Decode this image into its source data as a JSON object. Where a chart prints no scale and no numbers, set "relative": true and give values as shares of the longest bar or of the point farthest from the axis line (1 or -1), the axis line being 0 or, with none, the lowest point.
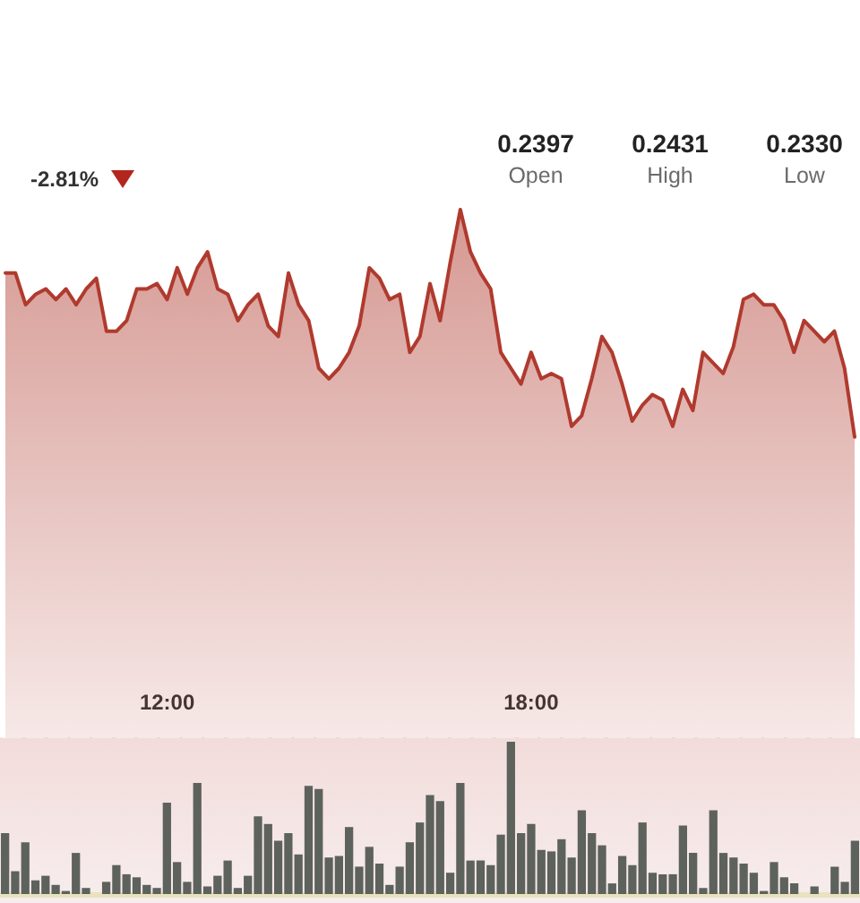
{
  "chart_data": [
    {
      "type": "area",
      "relative": true,
      "annotations": [
        "-2.81%",
        "0.2397",
        "Open",
        "0.2431",
        "High",
        "0.2330",
        "Low"
      ],
      "categories": [
        null,
        null,
        null,
        null,
        null,
        null,
        null,
        null,
        null,
        null,
        null,
        null,
        null,
        null,
        null,
        null,
        "12:00",
        null,
        null,
        null,
        null,
        null,
        null,
        null,
        null,
        null,
        null,
        null,
        null,
        null,
        null,
        null,
        null,
        null,
        null,
        null,
        null,
        null,
        null,
        null,
        null,
        null,
        null,
        null,
        null,
        null,
        null,
        null,
        null,
        null,
        null,
        null,
        "18:00",
        null,
        null,
        null,
        null,
        null,
        null,
        null,
        null,
        null,
        null,
        null,
        null,
        null,
        null,
        null,
        null,
        null,
        null,
        null,
        null,
        null,
        null,
        null,
        null,
        null,
        null,
        null,
        null,
        null,
        null,
        null,
        null
      ],
      "color": "#b03a2e",
      "values": [
        0.88,
        0.88,
        0.82,
        0.84,
        0.85,
        0.83,
        0.85,
        0.82,
        0.85,
        0.87,
        0.77,
        0.77,
        0.79,
        0.85,
        0.85,
        0.86,
        0.83,
        0.89,
        0.84,
        0.89,
        0.92,
        0.85,
        0.84,
        0.79,
        0.82,
        0.84,
        0.78,
        0.76,
        0.88,
        0.82,
        0.79,
        0.7,
        0.68,
        0.7,
        0.73,
        0.78,
        0.89,
        0.87,
        0.83,
        0.84,
        0.73,
        0.76,
        0.86,
        0.79,
        0.9,
        1,
        0.92,
        0.88,
        0.85,
        0.73,
        0.7,
        0.67,
        0.73,
        0.68,
        0.69,
        0.68,
        0.59,
        0.61,
        0.68,
        0.76,
        0.73,
        0.67,
        0.6,
        0.63,
        0.65,
        0.64,
        0.59,
        0.66,
        0.62,
        0.73,
        0.71,
        0.69,
        0.74,
        0.83,
        0.84,
        0.82,
        0.82,
        0.79,
        0.73,
        0.79,
        0.77,
        0.75,
        0.77,
        0.7,
        0.57
      ]
    },
    {
      "type": "bar",
      "relative": true,
      "tick_labels": false,
      "categories": [
        null,
        null,
        null,
        null,
        null,
        null,
        null,
        null,
        null,
        null,
        null,
        null,
        null,
        null,
        null,
        null,
        null,
        null,
        null,
        null,
        null,
        null,
        null,
        null,
        null,
        null,
        null,
        null,
        null,
        null,
        null,
        null,
        null,
        null,
        null,
        null,
        null,
        null,
        null,
        null,
        null,
        null,
        null,
        null,
        null,
        null,
        null,
        null,
        null,
        null,
        null,
        null,
        null,
        null,
        null,
        null,
        null,
        null,
        null,
        null,
        null,
        null,
        null,
        null,
        null,
        null,
        null,
        null,
        null,
        null,
        null,
        null,
        null,
        null,
        null,
        null,
        null,
        null,
        null,
        null,
        null,
        null,
        null,
        null,
        null
      ],
      "color": "#5d625c",
      "values": [
        0.4,
        0.15,
        0.34,
        0.09,
        0.12,
        0.06,
        0.02,
        0.27,
        0.04,
        null,
        0.08,
        0.19,
        0.13,
        0.11,
        0.06,
        0.04,
        0.6,
        0.21,
        0.08,
        0.73,
        0.05,
        0.12,
        0.22,
        0.04,
        0.12,
        0.51,
        0.46,
        0.35,
        0.4,
        0.26,
        0.71,
        0.69,
        0.24,
        0.25,
        0.44,
        0.18,
        0.31,
        0.2,
        0.06,
        0.18,
        0.34,
        0.47,
        0.65,
        0.61,
        0.14,
        0.73,
        0.22,
        0.22,
        0.19,
        0.39,
        1,
        0.4,
        0.46,
        0.29,
        0.28,
        0.36,
        0.24,
        0.55,
        0.4,
        0.32,
        0.07,
        0.25,
        0.19,
        0.47,
        0.14,
        0.13,
        0.13,
        0.45,
        0.27,
        0.04,
        0.55,
        0.27,
        0.24,
        0.2,
        0.14,
        0.02,
        0.21,
        0.11,
        0.07,
        null,
        0.05,
        null,
        0.18,
        0.08,
        0.35
      ]
    }
  ]
}
